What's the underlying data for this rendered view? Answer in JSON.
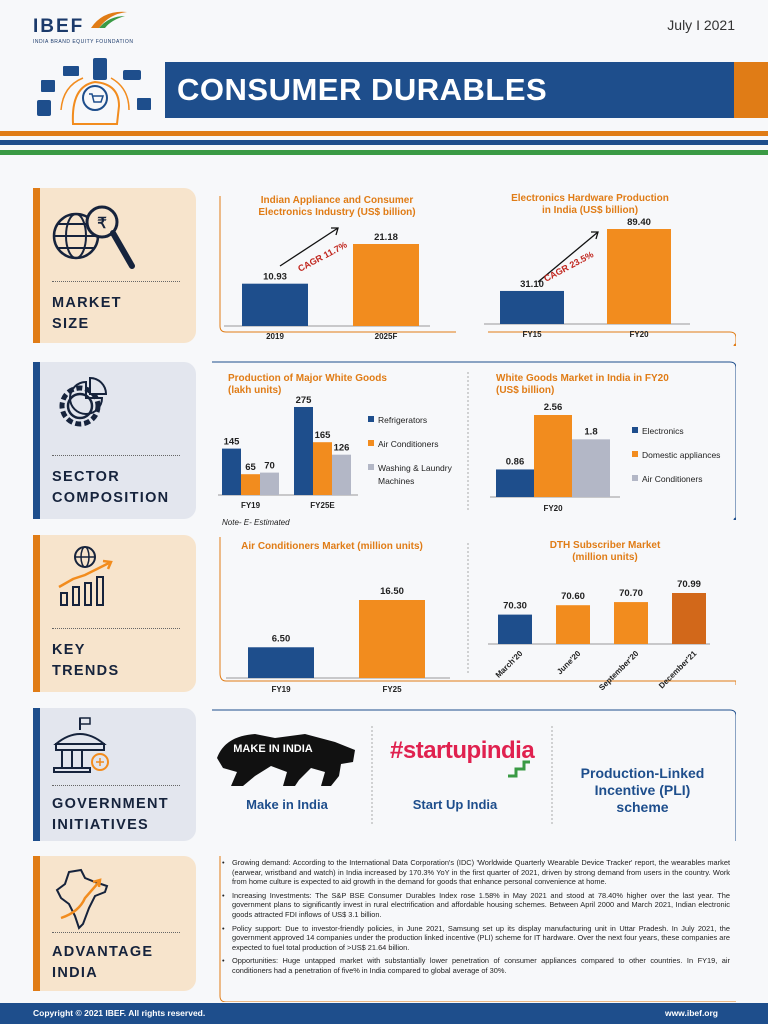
{
  "header": {
    "logo": "IBEF",
    "logo_sub": "INDIA BRAND EQUITY FOUNDATION",
    "date": "July I 2021",
    "title": "CONSUMER DURABLES"
  },
  "tabs": {
    "market_size": [
      "MARKET",
      "SIZE"
    ],
    "sector": [
      "SECTOR",
      "COMPOSITION"
    ],
    "trends": [
      "KEY",
      "TRENDS"
    ],
    "govt": [
      "GOVERNMENT",
      "INITIATIVES"
    ],
    "advantage": [
      "ADVANTAGE",
      "INDIA"
    ]
  },
  "colors": {
    "navy": "#1e4e8c",
    "orange": "#f28c1e",
    "grey": "#b3b7c6",
    "dark_orange": "#d2681a"
  },
  "chart_data": [
    {
      "type": "bar",
      "title": "Indian Appliance and Consumer Electronics Industry (US$ billion)",
      "categories": [
        "2019",
        "2025F"
      ],
      "values": [
        10.93,
        21.18
      ],
      "annotation": "CAGR 11.7%"
    },
    {
      "type": "bar",
      "title": "Electronics Hardware Production in India (US$ billion)",
      "categories": [
        "FY15",
        "FY20"
      ],
      "values": [
        31.1,
        89.4
      ],
      "annotation": "CAGR 23.5%"
    },
    {
      "type": "bar",
      "title": "Production of Major White Goods (lakh units)",
      "categories": [
        "FY19",
        "FY25E"
      ],
      "series": [
        {
          "name": "Refrigerators",
          "values": [
            145,
            275
          ]
        },
        {
          "name": "Air Conditioners",
          "values": [
            65,
            165
          ]
        },
        {
          "name": "Washing & Laundry Machines",
          "values": [
            70,
            126
          ]
        }
      ],
      "note": "Note- E- Estimated"
    },
    {
      "type": "bar",
      "title": "White Goods Market in India in FY20 (US$ billion)",
      "categories": [
        "FY20"
      ],
      "series": [
        {
          "name": "Electronics",
          "values": [
            0.86
          ]
        },
        {
          "name": "Domestic appliances",
          "values": [
            2.56
          ]
        },
        {
          "name": "Air Conditioners",
          "values": [
            1.8
          ]
        }
      ]
    },
    {
      "type": "bar",
      "title": "Air Conditioners Market (million units)",
      "categories": [
        "FY19",
        "FY25"
      ],
      "values": [
        6.5,
        16.5
      ]
    },
    {
      "type": "bar",
      "title": "DTH Subscriber Market (million units)",
      "categories": [
        "March'20",
        "June'20",
        "September'20",
        "December'21"
      ],
      "values": [
        70.3,
        70.6,
        70.7,
        70.99
      ]
    }
  ],
  "labels": {
    "c1_title": [
      "Indian Appliance and Consumer",
      "Electronics Industry (US$ billion)"
    ],
    "c1_vals": [
      "10.93",
      "21.18"
    ],
    "c1_cats": [
      "2019",
      "2025F"
    ],
    "c1_cagr": "CAGR 11.7%",
    "c2_title": [
      "Electronics Hardware Production",
      "in India (US$ billion)"
    ],
    "c2_vals": [
      "31.10",
      "89.40"
    ],
    "c2_cats": [
      "FY15",
      "FY20"
    ],
    "c2_cagr": "CAGR 23.5%",
    "c3_title": [
      "Production of Major White Goods",
      "(lakh units)"
    ],
    "c3_vals": [
      "145",
      "65",
      "70",
      "275",
      "165",
      "126"
    ],
    "c3_cats": [
      "FY19",
      "FY25E"
    ],
    "c3_legend": [
      "Refrigerators",
      "Air Conditioners",
      "Washing & Laundry",
      "Machines"
    ],
    "c3_note": "Note- E- Estimated",
    "c4_title": [
      "White Goods Market in India in FY20",
      "(US$ billion)"
    ],
    "c4_vals": [
      "0.86",
      "2.56",
      "1.8"
    ],
    "c4_cat": "FY20",
    "c4_legend": [
      "Electronics",
      "Domestic appliances",
      "Air Conditioners"
    ],
    "c5_title": "Air Conditioners Market (million units)",
    "c5_vals": [
      "6.50",
      "16.50"
    ],
    "c5_cats": [
      "FY19",
      "FY25"
    ],
    "c6_title": [
      "DTH Subscriber Market",
      "(million units)"
    ],
    "c6_vals": [
      "70.30",
      "70.60",
      "70.70",
      "70.99"
    ],
    "c6_cats": [
      "March'20",
      "June'20",
      "September'20",
      "December'21"
    ]
  },
  "govt": {
    "make_in_india": "Make in India",
    "make_logo": "MAKE IN INDIA",
    "startup_logo": "#startupindia",
    "startup": "Start Up India",
    "pli": [
      "Production-Linked",
      "Incentive (PLI)",
      "scheme"
    ]
  },
  "advantage": [
    "Growing demand: According to the International Data Corporation's (IDC) 'Worldwide Quarterly Wearable Device Tracker' report, the wearables market (earwear, wristband and watch) in India increased by 170.3% YoY in the first quarter of 2021, driven by strong demand from users in the country. Work from home culture is expected to aid growth in the demand for goods that enhance personal convenience at home.",
    "Increasing Investments: The S&P BSE Consumer Durables Index rose 1.58% in May 2021 and stood at 78.40% higher over the last year. The government plans to significantly invest in rural electrification and affordable housing schemes. Between April 2000 and March 2021, Indian electronic goods attracted FDI inflows of US$ 3.1 billion.",
    "Policy support: Due to investor-friendly policies, in June 2021, Samsung set up its display manufacturing unit in Uttar Pradesh. In July 2021, the government approved 14 companies under the production linked incentive (PLI) scheme for IT hardware. Over the next four years, these companies are expected to fuel total production of >US$ 21.64 billion.",
    "Opportunities: Huge untapped market with substantially lower penetration of consumer appliances compared to other countries. In FY19, air conditioners had a penetration of five% in India compared to global average of 30%."
  ],
  "footer": {
    "copyright": "Copyright © 2021 IBEF. All rights reserved.",
    "url": "www.ibef.org"
  }
}
